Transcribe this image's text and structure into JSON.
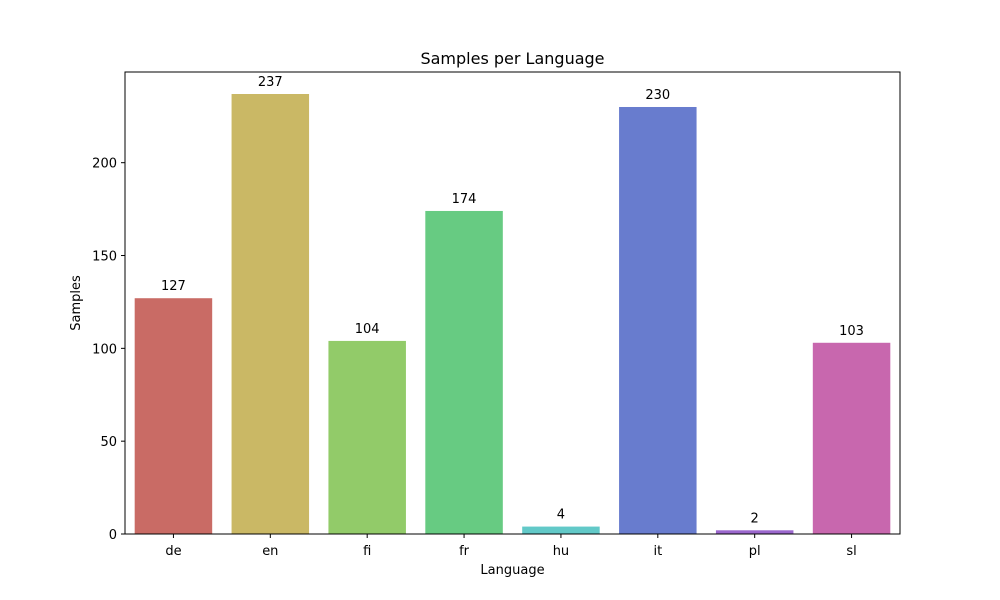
{
  "chart_data": {
    "type": "bar",
    "title": "Samples per Language",
    "xlabel": "Language",
    "ylabel": "Samples",
    "categories": [
      "de",
      "en",
      "fi",
      "fr",
      "hu",
      "it",
      "pl",
      "sl"
    ],
    "values": [
      127,
      237,
      104,
      174,
      4,
      230,
      2,
      103
    ],
    "colors": [
      "#c96b65",
      "#cab865",
      "#92cb69",
      "#67cb82",
      "#62c9c8",
      "#687cce",
      "#9b67cd",
      "#c867ae"
    ],
    "ylim": [
      0,
      248.85
    ],
    "yticks": [
      0,
      50,
      100,
      150,
      200
    ],
    "grid": false,
    "legend": "none"
  }
}
